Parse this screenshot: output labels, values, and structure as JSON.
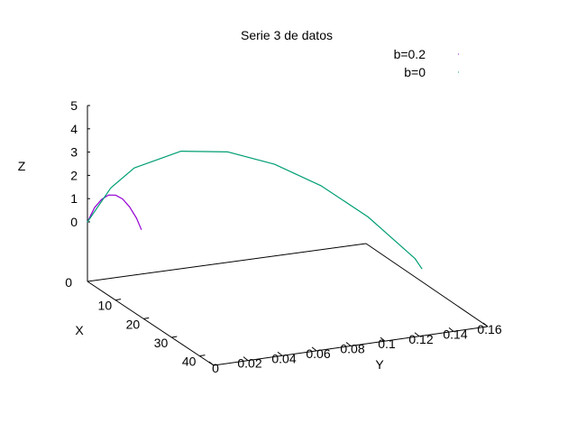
{
  "chart_data": {
    "type": "line",
    "title": "Serie 3 de datos",
    "xlabel": "X",
    "ylabel": "Y",
    "zlabel": "Z",
    "xlim": [
      0,
      45
    ],
    "ylim": [
      0,
      0.16
    ],
    "zlim": [
      0,
      5
    ],
    "x_ticks": [
      "10",
      "20",
      "30",
      "40"
    ],
    "y_ticks": [
      "0",
      "0.02",
      "0.04",
      "0.06",
      "0.08",
      "0.1",
      "0.12",
      "0.14",
      "0.16"
    ],
    "z_ticks": [
      "0",
      "1",
      "2",
      "3",
      "4",
      "5"
    ],
    "x_axis_zero_label": "0",
    "grid": false,
    "legend_position": "top-right",
    "series": [
      {
        "name": "b=0.2",
        "color": "#9400d3",
        "points": [
          {
            "y": 0.0,
            "z": 0.0
          },
          {
            "y": 0.003,
            "z": 0.65
          },
          {
            "y": 0.006,
            "z": 1.05
          },
          {
            "y": 0.009,
            "z": 1.28
          },
          {
            "y": 0.012,
            "z": 1.32
          },
          {
            "y": 0.015,
            "z": 1.2
          },
          {
            "y": 0.018,
            "z": 0.9
          },
          {
            "y": 0.021,
            "z": 0.45
          },
          {
            "y": 0.023,
            "z": 0.0
          }
        ]
      },
      {
        "name": "b=0",
        "color": "#009e73",
        "points": [
          {
            "y": 0.0,
            "z": 0.0
          },
          {
            "y": 0.01,
            "z": 1.6
          },
          {
            "y": 0.02,
            "z": 2.6
          },
          {
            "y": 0.04,
            "z": 3.6
          },
          {
            "y": 0.06,
            "z": 3.85
          },
          {
            "y": 0.08,
            "z": 3.6
          },
          {
            "y": 0.1,
            "z": 2.95
          },
          {
            "y": 0.12,
            "z": 1.9
          },
          {
            "y": 0.14,
            "z": 0.4
          },
          {
            "y": 0.143,
            "z": 0.0
          }
        ]
      }
    ]
  }
}
